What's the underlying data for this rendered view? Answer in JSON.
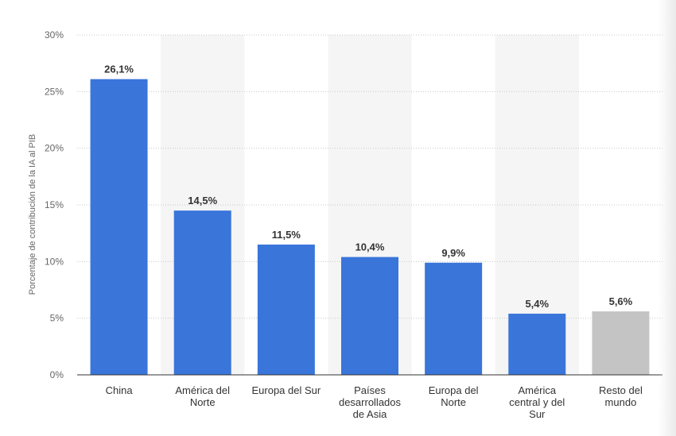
{
  "chart_data": {
    "type": "bar",
    "ylabel": "Porcentaje de contribución de la IA al PIB",
    "ylim": [
      0,
      30
    ],
    "yticks": [
      "0%",
      "5%",
      "10%",
      "15%",
      "20%",
      "25%",
      "30%"
    ],
    "grid": true,
    "categories": [
      [
        "China"
      ],
      [
        "América del",
        "Norte"
      ],
      [
        "Europa del Sur"
      ],
      [
        "Países",
        "desarrollados",
        "de Asia"
      ],
      [
        "Europa del",
        "Norte"
      ],
      [
        "América",
        "central y del",
        "Sur"
      ],
      [
        "Resto del",
        "mundo"
      ]
    ],
    "values": [
      26.1,
      14.5,
      11.5,
      10.4,
      9.9,
      5.4,
      5.6
    ],
    "value_labels": [
      "26,1%",
      "14,5%",
      "11,5%",
      "10,4%",
      "9,9%",
      "5,4%",
      "5,6%"
    ],
    "bar_colors": [
      "#3a75da",
      "#3a75da",
      "#3a75da",
      "#3a75da",
      "#3a75da",
      "#3a75da",
      "#c4c4c4"
    ],
    "band_color": "#f5f5f5",
    "grid_color": "#c8c8c8",
    "axis_color": "#333333"
  }
}
